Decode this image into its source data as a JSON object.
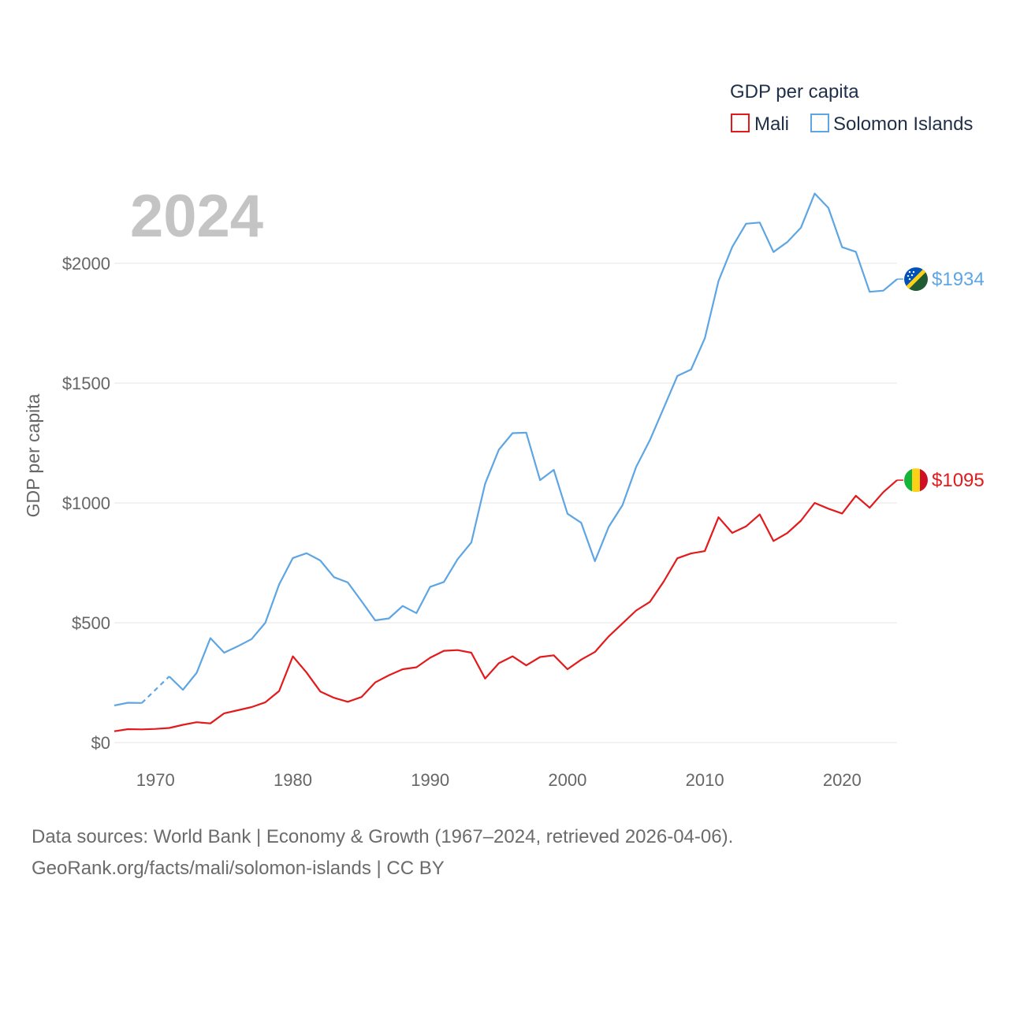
{
  "chart_data": {
    "type": "line",
    "year_label": "2024",
    "ylabel": "GDP per capita",
    "xlabel": "",
    "legend": {
      "title": "GDP per capita",
      "placement": "top-right"
    },
    "ylim": [
      0,
      2300
    ],
    "xlim": [
      1967,
      2024
    ],
    "y_ticks": [
      {
        "value": 0,
        "label": "$0"
      },
      {
        "value": 500,
        "label": "$500"
      },
      {
        "value": 1000,
        "label": "$1000"
      },
      {
        "value": 1500,
        "label": "$1500"
      },
      {
        "value": 2000,
        "label": "$2000"
      }
    ],
    "x_ticks": [
      {
        "value": 1970,
        "label": "1970"
      },
      {
        "value": 1980,
        "label": "1980"
      },
      {
        "value": 1990,
        "label": "1990"
      },
      {
        "value": 2000,
        "label": "2000"
      },
      {
        "value": 2010,
        "label": "2010"
      },
      {
        "value": 2020,
        "label": "2020"
      }
    ],
    "series": [
      {
        "name": "Mali",
        "color": "#e31a1c",
        "end_label": "$1095",
        "flag": "mali-flag",
        "x": [
          1967,
          1968,
          1969,
          1970,
          1971,
          1972,
          1973,
          1974,
          1975,
          1976,
          1977,
          1978,
          1979,
          1980,
          1981,
          1982,
          1983,
          1984,
          1985,
          1986,
          1987,
          1988,
          1989,
          1990,
          1991,
          1992,
          1993,
          1994,
          1995,
          1996,
          1997,
          1998,
          1999,
          2000,
          2001,
          2002,
          2003,
          2004,
          2005,
          2006,
          2007,
          2008,
          2009,
          2010,
          2011,
          2012,
          2013,
          2014,
          2015,
          2016,
          2017,
          2018,
          2019,
          2020,
          2021,
          2022,
          2023,
          2024
        ],
        "values": [
          47,
          56,
          55,
          57,
          61,
          74,
          85,
          80,
          122,
          135,
          148,
          168,
          215,
          360,
          292,
          213,
          187,
          170,
          190,
          251,
          281,
          306,
          314,
          354,
          383,
          386,
          375,
          267,
          331,
          360,
          322,
          357,
          364,
          306,
          346,
          378,
          443,
          497,
          551,
          587,
          671,
          769,
          789,
          799,
          940,
          875,
          902,
          952,
          841,
          874,
          926,
          1000,
          976,
          956,
          1030,
          980,
          1045,
          1095
        ],
        "dashed_ranges": []
      },
      {
        "name": "Solomon Islands",
        "color": "#5ea5e3",
        "end_label": "$1934",
        "flag": "solomon-islands-flag",
        "x": [
          1967,
          1968,
          1969,
          1970,
          1971,
          1972,
          1973,
          1974,
          1975,
          1976,
          1977,
          1978,
          1979,
          1980,
          1981,
          1982,
          1983,
          1984,
          1985,
          1986,
          1987,
          1988,
          1989,
          1990,
          1991,
          1992,
          1993,
          1994,
          1995,
          1996,
          1997,
          1998,
          1999,
          2000,
          2001,
          2002,
          2003,
          2004,
          2005,
          2006,
          2007,
          2008,
          2009,
          2010,
          2011,
          2012,
          2013,
          2014,
          2015,
          2016,
          2017,
          2018,
          2019,
          2020,
          2021,
          2022,
          2023,
          2024
        ],
        "values": [
          155,
          166,
          165,
          null,
          276,
          220,
          291,
          436,
          375,
          402,
          432,
          500,
          660,
          770,
          790,
          760,
          690,
          668,
          590,
          510,
          518,
          570,
          540,
          650,
          670,
          765,
          835,
          1080,
          1222,
          1291,
          1293,
          1095,
          1138,
          955,
          917,
          757,
          900,
          990,
          1150,
          1262,
          1395,
          1530,
          1557,
          1687,
          1926,
          2068,
          2165,
          2170,
          2047,
          2088,
          2149,
          2291,
          2231,
          2067,
          2048,
          1881,
          1886,
          1934
        ],
        "dashed_ranges": [
          [
            1969,
            1971
          ]
        ]
      }
    ]
  },
  "source": {
    "line1": "Data sources: World Bank | Economy & Growth (1967–2024, retrieved 2026-04-06).",
    "line2": "GeoRank.org/facts/mali/solomon-islands | CC BY"
  }
}
